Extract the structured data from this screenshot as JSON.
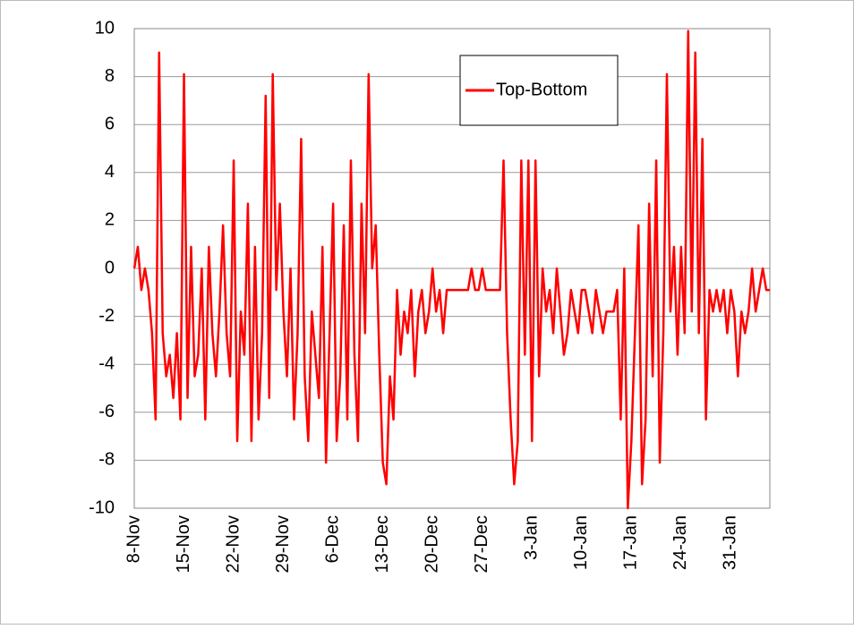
{
  "chart_data": {
    "type": "line",
    "categories": [
      "8-Nov",
      null,
      null,
      null,
      null,
      null,
      null,
      null,
      null,
      null,
      null,
      null,
      null,
      null,
      "15-Nov",
      null,
      null,
      null,
      null,
      null,
      null,
      null,
      null,
      null,
      null,
      null,
      null,
      null,
      "22-Nov",
      null,
      null,
      null,
      null,
      null,
      null,
      null,
      null,
      null,
      null,
      null,
      null,
      null,
      "29-Nov",
      null,
      null,
      null,
      null,
      null,
      null,
      null,
      null,
      null,
      null,
      null,
      null,
      null,
      "6-Dec",
      null,
      null,
      null,
      null,
      null,
      null,
      null,
      null,
      null,
      null,
      null,
      null,
      null,
      "13-Dec",
      null,
      null,
      null,
      null,
      null,
      null,
      null,
      null,
      null,
      null,
      null,
      null,
      null,
      "20-Dec",
      null,
      null,
      null,
      null,
      null,
      null,
      null,
      null,
      null,
      null,
      null,
      null,
      null,
      "27-Dec",
      null,
      null,
      null,
      null,
      null,
      null,
      null,
      null,
      null,
      null,
      null,
      null,
      null,
      "3-Jan",
      null,
      null,
      null,
      null,
      null,
      null,
      null,
      null,
      null,
      null,
      null,
      null,
      null,
      "10-Jan",
      null,
      null,
      null,
      null,
      null,
      null,
      null,
      null,
      null,
      null,
      null,
      null,
      null,
      "17-Jan",
      null,
      null,
      null,
      null,
      null,
      null,
      null,
      null,
      null,
      null,
      null,
      null,
      null,
      "24-Jan",
      null,
      null,
      null,
      null,
      null,
      null,
      null,
      null,
      null,
      null,
      null,
      null,
      null,
      "31-Jan",
      null,
      null,
      null,
      null,
      null,
      null,
      null,
      null,
      null,
      null,
      null
    ],
    "series": [
      {
        "name": "Top-Bottom",
        "color": "#ff0000",
        "values": [
          0,
          0.9,
          -0.9,
          0,
          -0.9,
          -2.7,
          -6.3,
          9,
          -2.7,
          -4.5,
          -3.6,
          -5.4,
          -2.7,
          -6.3,
          8.1,
          -5.4,
          0.9,
          -4.5,
          -3.6,
          0,
          -6.3,
          0.9,
          -2.7,
          -4.5,
          -1.8,
          1.8,
          -2.7,
          -4.5,
          4.5,
          -7.2,
          -1.8,
          -3.6,
          2.7,
          -7.2,
          0.9,
          -6.3,
          -2.7,
          7.2,
          -5.4,
          8.1,
          -0.9,
          2.7,
          -1.8,
          -4.5,
          0,
          -6.3,
          -2.7,
          5.4,
          -4.5,
          -7.2,
          -1.8,
          -3.6,
          -5.4,
          0.9,
          -8.1,
          -2.7,
          2.7,
          -7.2,
          -4.5,
          1.8,
          -6.3,
          4.5,
          -3.6,
          -7.2,
          2.7,
          -2.7,
          8.1,
          0,
          1.8,
          -3.6,
          -8.1,
          -9,
          -4.5,
          -6.3,
          -0.9,
          -3.6,
          -1.8,
          -2.7,
          -0.9,
          -4.5,
          -1.8,
          -0.9,
          -2.7,
          -1.8,
          0,
          -1.8,
          -0.9,
          -2.7,
          -0.9,
          -0.9,
          -0.9,
          -0.9,
          -0.9,
          -0.9,
          -0.9,
          0,
          -0.9,
          -0.9,
          0,
          -0.9,
          -0.9,
          -0.9,
          -0.9,
          -0.9,
          4.5,
          -2.7,
          -6.3,
          -9,
          -7.2,
          4.5,
          -3.6,
          4.5,
          -7.2,
          4.5,
          -4.5,
          0,
          -1.8,
          -0.9,
          -2.7,
          0,
          -1.8,
          -3.6,
          -2.7,
          -0.9,
          -1.8,
          -2.7,
          -0.9,
          -0.9,
          -1.8,
          -2.7,
          -0.9,
          -1.8,
          -2.7,
          -1.8,
          -1.8,
          -1.8,
          -0.9,
          -6.3,
          0,
          -10,
          -7.2,
          -2.7,
          1.8,
          -9,
          -6.3,
          2.7,
          -4.5,
          4.5,
          -8.1,
          -2.7,
          8.1,
          -1.8,
          0.9,
          -3.6,
          0.9,
          -2.7,
          9.9,
          -1.8,
          9,
          -2.7,
          5.4,
          -6.3,
          -0.9,
          -1.8,
          -0.9,
          -1.8,
          -0.9,
          -2.7,
          -0.9,
          -1.8,
          -4.5,
          -1.8,
          -2.7,
          -1.8,
          0,
          -1.8,
          -0.9,
          0,
          -0.9,
          -0.9
        ]
      }
    ],
    "ylim": [
      -10,
      10
    ],
    "yticks": [
      -10,
      -8,
      -6,
      -4,
      -2,
      0,
      2,
      4,
      6,
      8,
      10
    ],
    "grid": true
  }
}
